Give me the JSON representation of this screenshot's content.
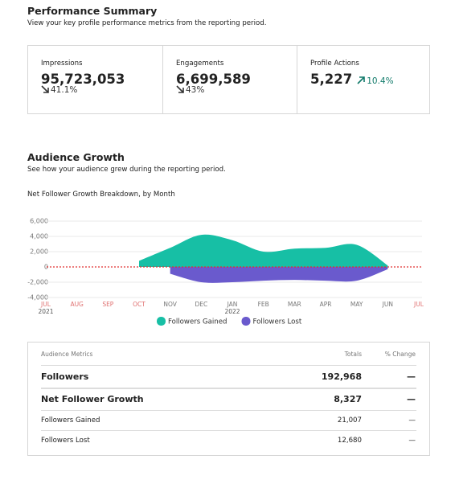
{
  "header": {
    "title": "Performance Summary",
    "subtitle": "View your key profile performance metrics from the reporting period."
  },
  "kpis": [
    {
      "label": "Impressions",
      "value": "95,723,053",
      "change": "41.1%",
      "direction": "down"
    },
    {
      "label": "Engagements",
      "value": "6,699,589",
      "change": "43%",
      "direction": "down"
    },
    {
      "label": "Profile Actions",
      "value": "5,227",
      "change": "10.4%",
      "direction": "up"
    }
  ],
  "audience": {
    "title": "Audience Growth",
    "subtitle": "See how your audience grew during the reporting period."
  },
  "chart_data": {
    "type": "area",
    "title": "Net Follower Growth Breakdown, by Month",
    "categories": [
      "JUL",
      "AUG",
      "SEP",
      "OCT",
      "NOV",
      "DEC",
      "JAN",
      "FEB",
      "MAR",
      "APR",
      "MAY",
      "JUN",
      "JUL"
    ],
    "category_colors": [
      "#e07070",
      "#e07070",
      "#e07070",
      "#e07070",
      "#777777",
      "#777777",
      "#777777",
      "#777777",
      "#777777",
      "#777777",
      "#777777",
      "#777777",
      "#e07070"
    ],
    "year_labels": [
      {
        "index": 0,
        "label": "2021"
      },
      {
        "index": 6,
        "label": "2022"
      }
    ],
    "series": [
      {
        "name": "Followers Gained",
        "color": "#17bfa5",
        "values": [
          null,
          null,
          null,
          800,
          2500,
          4200,
          3500,
          2000,
          2400,
          2500,
          2900,
          200,
          null
        ]
      },
      {
        "name": "Followers Lost",
        "color": "#6a5acd",
        "values": [
          null,
          null,
          null,
          null,
          -900,
          -2000,
          -2000,
          -1800,
          -1700,
          -1800,
          -1800,
          -300,
          null
        ]
      }
    ],
    "ylim": [
      -4000,
      6000
    ],
    "yticks": [
      {
        "value": -4000,
        "label": "-4,000"
      },
      {
        "value": -2000,
        "label": "-2,000"
      },
      0,
      {
        "value": 2000,
        "label": "2,000"
      },
      {
        "value": 4000,
        "label": "4,000"
      },
      {
        "value": 6000,
        "label": "6,000"
      }
    ],
    "grid": true,
    "zero_line_color": "#e03030"
  },
  "table": {
    "columns": [
      "Audience Metrics",
      "Totals",
      "% Change"
    ],
    "rows": [
      {
        "cells": [
          "Followers",
          "192,968",
          "—"
        ],
        "bold": true
      },
      {
        "cells": [
          "Net Follower Growth",
          "8,327",
          "—"
        ],
        "bold": true
      },
      {
        "cells": [
          "Followers Gained",
          "21,007",
          "—"
        ],
        "bold": false
      },
      {
        "cells": [
          "Followers Lost",
          "12,680",
          "—"
        ],
        "bold": false
      }
    ]
  }
}
